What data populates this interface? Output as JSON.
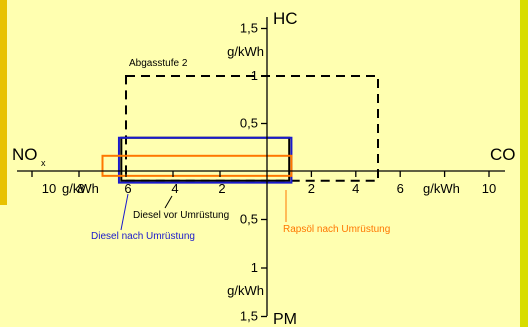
{
  "chart_data": {
    "type": "line",
    "axes": {
      "hc": {
        "label": "HC",
        "unit": "g/kWh",
        "ticks": [
          "1,5",
          "1",
          "0,5"
        ]
      },
      "pm": {
        "label": "PM",
        "unit": "g/kWh",
        "ticks": [
          "0,5",
          "1",
          "1,5"
        ]
      },
      "nox": {
        "label": "NO",
        "label_sub": "x",
        "unit": "g/kWh",
        "ticks": [
          "10",
          "8",
          "6",
          "4",
          "2"
        ]
      },
      "co": {
        "label": "CO",
        "unit": "g/kWh",
        "ticks": [
          "2",
          "4",
          "6",
          "10"
        ]
      }
    },
    "series": [
      {
        "name": "Abgasstufe 2",
        "color": "#000000",
        "dashed": true,
        "bounds": {
          "nox": 6.0,
          "co": 5.0,
          "hc": 1.0,
          "pm": 0.1
        }
      },
      {
        "name": "Diesel vor Umrüstung",
        "color": "#000000",
        "dashed": false,
        "bounds": {
          "nox": 6.2,
          "co": 1.0,
          "hc": 0.35,
          "pm": 0.1
        }
      },
      {
        "name": "Diesel nach Umrüstung",
        "color": "#1a1acc",
        "dashed": false,
        "bounds": {
          "nox": 6.3,
          "co": 1.1,
          "hc": 0.35,
          "pm": 0.12
        }
      },
      {
        "name": "Rapsöl nach Umrüstung",
        "color": "#ff7700",
        "dashed": false,
        "bounds": {
          "nox": 7.0,
          "co": 1.1,
          "hc": 0.16,
          "pm": 0.05
        }
      }
    ],
    "labels": {
      "abgasstufe": "Abgasstufe 2",
      "diesel_vor": "Diesel vor Umrüstung",
      "diesel_nach": "Diesel nach Umrüstung",
      "rapsoel_nach": "Rapsöl nach Umrüstung"
    }
  }
}
